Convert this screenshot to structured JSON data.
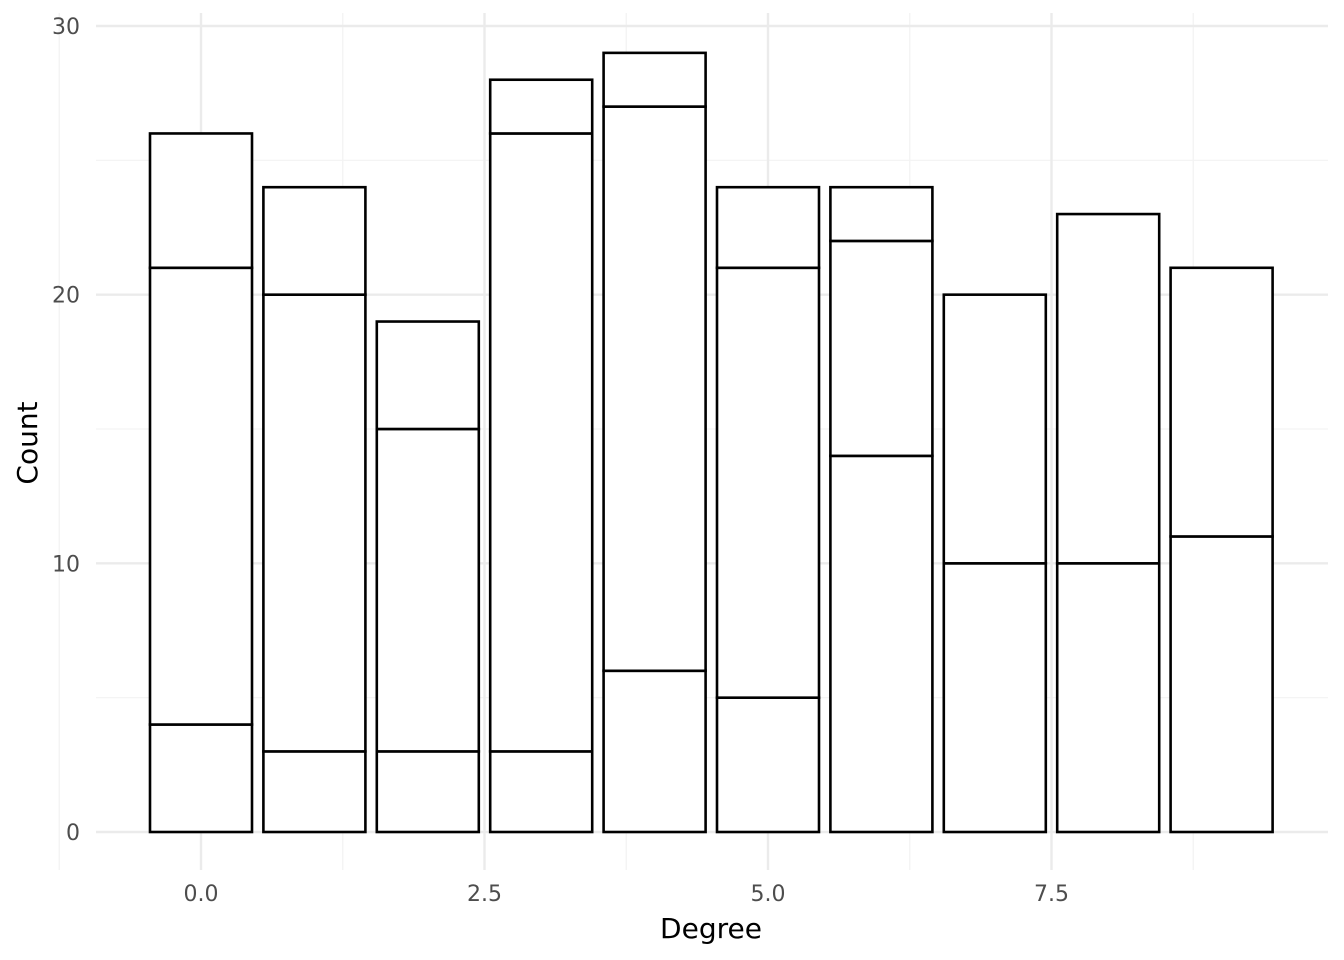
{
  "chart_data": {
    "type": "bar",
    "stacked": true,
    "xlabel": "Degree",
    "ylabel": "Count",
    "xlim": [
      -0.95,
      9.95
    ],
    "ylim": [
      0,
      30
    ],
    "x_ticks": [
      0.0,
      2.5,
      5.0,
      7.5
    ],
    "x_tick_labels": [
      "0.0",
      "2.5",
      "5.0",
      "7.5"
    ],
    "y_ticks": [
      0,
      10,
      20,
      30
    ],
    "y_tick_labels": [
      "0",
      "10",
      "20",
      "30"
    ],
    "grid": true,
    "legend": "none",
    "fill_color": "#ffffff",
    "outline_color": "#000000",
    "x": [
      0,
      1,
      2,
      3,
      4,
      5,
      6,
      7,
      8,
      9
    ],
    "segments": [
      [
        4,
        17,
        5
      ],
      [
        3,
        17,
        4
      ],
      [
        3,
        12,
        4
      ],
      [
        3,
        23,
        2
      ],
      [
        6,
        21,
        2
      ],
      [
        5,
        16,
        3
      ],
      [
        14,
        8,
        2
      ],
      [
        10,
        10
      ],
      [
        10,
        13
      ],
      [
        11,
        10
      ]
    ],
    "totals": [
      26,
      24,
      19,
      28,
      29,
      24,
      24,
      20,
      23,
      21
    ]
  }
}
